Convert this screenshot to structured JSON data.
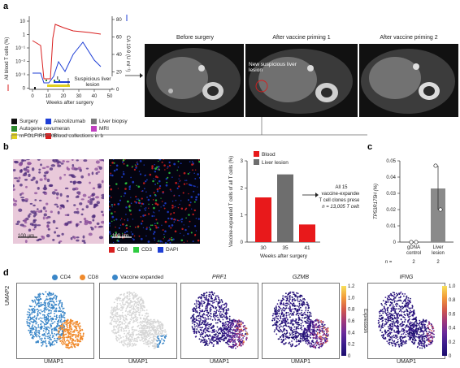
{
  "panel_a": {
    "letter": "a",
    "y_left_label": "All blood T cells (%)",
    "y_right_label": "CA 19-9 (U ml⁻¹)",
    "x_label": "Weeks after surgery",
    "y_left_ticks": [
      "10",
      "1",
      "10⁻¹",
      "10⁻²",
      "10⁻³",
      "0"
    ],
    "y_right_ticks": [
      "80",
      "60",
      "40",
      "20",
      "0"
    ],
    "x_ticks": [
      "0",
      "10",
      "20",
      "30",
      "40",
      "50"
    ],
    "annotation": "Suspicious liver lesion",
    "mri_titles": [
      "Before surgery",
      "After vaccine priming 1",
      "After vaccine priming 2"
    ],
    "mri_annotation": "New suspicious liver lesion",
    "legend": [
      {
        "label": "Surgery",
        "color": "#111111"
      },
      {
        "label": "Atezolizumab",
        "color": "#1f3fd6"
      },
      {
        "label": "Liver biopsy",
        "color": "#7a7a7a"
      },
      {
        "label": "Autogene cevumeran",
        "color": "#2e8b2e"
      },
      {
        "label": "MRI",
        "color": "#c040c0"
      },
      {
        "label": "mFOLFIRINOX",
        "color": "#e0d020"
      },
      {
        "label": "Blood collections in b",
        "color": "#d81e1e"
      }
    ]
  },
  "panel_b": {
    "letter": "b",
    "scalebar_1": "100 μm",
    "scalebar_2": "100 μm",
    "stain_legend": [
      {
        "label": "CD8",
        "color": "#d81e1e"
      },
      {
        "label": "CD3",
        "color": "#2ecc40"
      },
      {
        "label": "DAPI",
        "color": "#1f3fd6"
      }
    ],
    "annotation_lines": [
      "All 15",
      "vaccine-expanded",
      "T cell clones present",
      "n = 13,005 T cells"
    ]
  },
  "panel_c": {
    "letter": "c",
    "n_label": "n =",
    "n_values": [
      "2",
      "2"
    ]
  },
  "panel_d": {
    "letter": "d",
    "legend": [
      {
        "label": "CD4",
        "color": "#3a86c8"
      },
      {
        "label": "CD8",
        "color": "#f08a2c"
      },
      {
        "label": "Vaccine expanded",
        "color": "#3a86c8"
      }
    ],
    "gene_titles": [
      "PRF1",
      "GZMB",
      "IFNG"
    ],
    "y_label": "UMAP2",
    "x_label": "UMAP1",
    "colorbar_label": "Expression",
    "colorbar_ticks": [
      "1.2",
      "1.0",
      "0.8",
      "0.6",
      "0.4",
      "0.2",
      "0"
    ],
    "colorbar2_ticks": [
      "1.0",
      "0.8",
      "0.6",
      "0.4",
      "0.2",
      "0"
    ]
  },
  "chart_data": [
    {
      "type": "bar",
      "title": "",
      "ylabel": "Vaccine-expanded T cells of all T cells (%)",
      "xlabel": "Weeks after surgery",
      "categories": [
        "30",
        "35",
        "41"
      ],
      "values": [
        1.65,
        2.5,
        0.65
      ],
      "bar_series": [
        "Blood",
        "Liver lesion",
        "Blood"
      ],
      "legend": [
        {
          "name": "Blood",
          "color": "#e8191b"
        },
        {
          "name": "Liver lesion",
          "color": "#6e6e6e"
        }
      ],
      "yticks": [
        "0",
        "1",
        "2",
        "3"
      ],
      "ylim": [
        0,
        3
      ]
    },
    {
      "type": "bar",
      "title": "",
      "ylabel": "TP53R175H (%)",
      "categories": [
        "gDNA control",
        "Liver lesion"
      ],
      "values": [
        0.0,
        0.033
      ],
      "points": [
        [
          0.0,
          0.0
        ],
        [
          0.047,
          0.02
        ]
      ],
      "yticks": [
        "0",
        "0.01",
        "0.02",
        "0.03",
        "0.04",
        "0.05"
      ],
      "ylim": [
        0,
        0.05
      ]
    }
  ]
}
